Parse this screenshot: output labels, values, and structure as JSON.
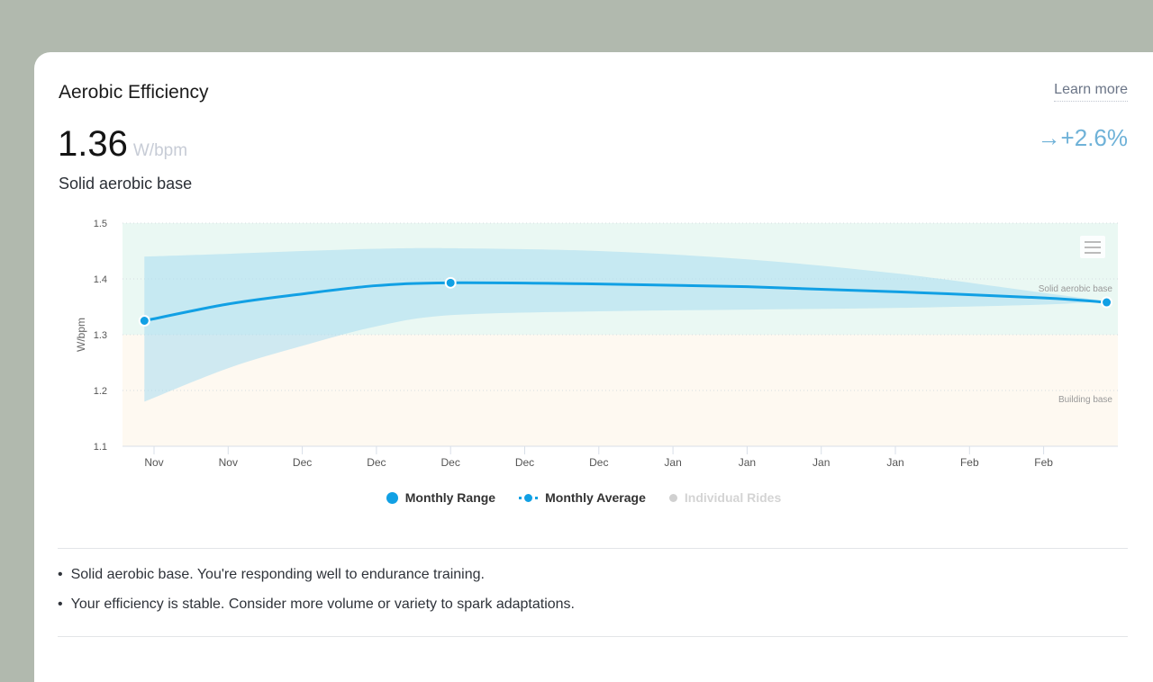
{
  "header": {
    "title": "Aerobic Efficiency",
    "learn_more": "Learn more",
    "value": "1.36",
    "unit": "W/bpm",
    "change_arrow": "→",
    "change": "+2.6%",
    "status": "Solid aerobic base"
  },
  "colors": {
    "accent": "#11a0e4",
    "band": "#cdebf2",
    "zone_solid": "#eaf8f3",
    "zone_building": "#fef9f1"
  },
  "chart_data": {
    "type": "area",
    "ylabel": "W/bpm",
    "ylim": [
      1.1,
      1.5
    ],
    "yticks": [
      "1.1",
      "1.2",
      "1.3",
      "1.4",
      "1.5"
    ],
    "xticks": [
      "Nov",
      "Nov",
      "Dec",
      "Dec",
      "Dec",
      "Dec",
      "Dec",
      "Jan",
      "Jan",
      "Jan",
      "Jan",
      "Feb",
      "Feb"
    ],
    "zones": [
      {
        "label": "Solid aerobic base",
        "from": 1.3,
        "to": 1.5
      },
      {
        "label": "Building base",
        "from": 1.1,
        "to": 1.3
      }
    ],
    "series": [
      {
        "name": "Monthly Range",
        "x": [
          -0.13,
          1,
          2,
          3,
          4,
          6,
          8,
          10,
          12,
          12.85
        ],
        "upper": [
          1.44,
          1.445,
          1.45,
          1.454,
          1.455,
          1.45,
          1.435,
          1.41,
          1.375,
          1.36
        ],
        "lower": [
          1.18,
          1.24,
          1.28,
          1.315,
          1.335,
          1.342,
          1.345,
          1.348,
          1.354,
          1.36
        ]
      },
      {
        "name": "Monthly Average",
        "x": [
          -0.13,
          1,
          2,
          3,
          4,
          6,
          8,
          10,
          12,
          12.85
        ],
        "y": [
          1.325,
          1.355,
          1.373,
          1.388,
          1.393,
          1.391,
          1.386,
          1.377,
          1.366,
          1.358
        ],
        "markers": [
          0,
          4,
          9
        ]
      },
      {
        "name": "Individual Rides",
        "hidden": true
      }
    ],
    "legend": "bottom"
  },
  "insights": [
    "Solid aerobic base. You're responding well to endurance training.",
    "Your efficiency is stable. Consider more volume or variety to spark adaptations."
  ]
}
